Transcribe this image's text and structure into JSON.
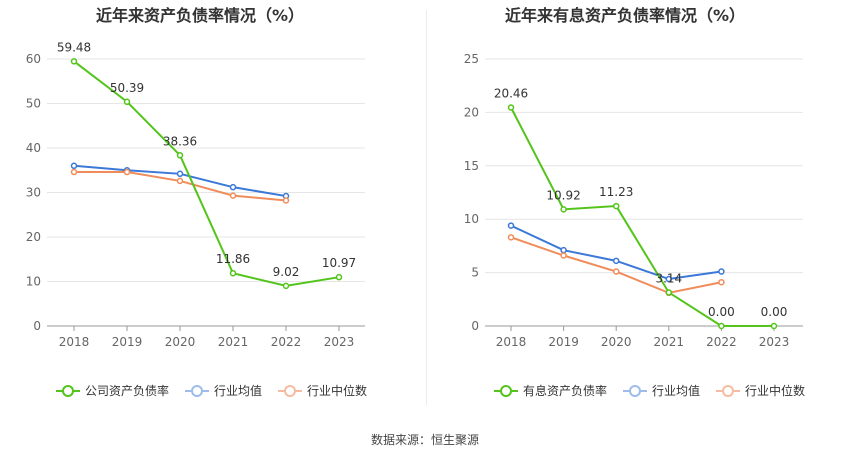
{
  "source_label": "数据来源：恒生聚源",
  "chart_data": [
    {
      "type": "line",
      "title": "近年来资产负债率情况（%）",
      "categories": [
        "2018",
        "2019",
        "2020",
        "2021",
        "2022",
        "2023"
      ],
      "ylim": [
        0,
        60
      ],
      "yticks": [
        0,
        10,
        20,
        30,
        40,
        50,
        60
      ],
      "grid": true,
      "legend_position": "bottom",
      "series": [
        {
          "name": "公司资产负债率",
          "color": "#52c41a",
          "values": [
            59.48,
            50.39,
            38.36,
            11.86,
            9.02,
            10.97
          ],
          "labels": [
            "59.48",
            "50.39",
            "38.36",
            "11.86",
            "9.02",
            "10.97"
          ]
        },
        {
          "name": "行业均值",
          "color": "#3b78d8",
          "values": [
            36.0,
            35.0,
            34.2,
            31.2,
            29.2,
            null
          ]
        },
        {
          "name": "行业中位数",
          "color": "#f08c5a",
          "values": [
            34.6,
            34.6,
            32.6,
            29.3,
            28.2,
            null
          ]
        }
      ]
    },
    {
      "type": "line",
      "title": "近年来有息资产负债率情况（%）",
      "categories": [
        "2018",
        "2019",
        "2020",
        "2021",
        "2022",
        "2023"
      ],
      "ylim": [
        0,
        25
      ],
      "yticks": [
        0,
        5,
        10,
        15,
        20,
        25
      ],
      "grid": true,
      "legend_position": "bottom",
      "series": [
        {
          "name": "有息资产负债率",
          "color": "#52c41a",
          "values": [
            20.46,
            10.92,
            11.23,
            3.14,
            0.0,
            0.0
          ],
          "labels": [
            "20.46",
            "10.92",
            "11.23",
            "3.14",
            "0.00",
            "0.00"
          ]
        },
        {
          "name": "行业均值",
          "color": "#3b78d8",
          "values": [
            9.4,
            7.1,
            6.1,
            4.4,
            5.1,
            null
          ]
        },
        {
          "name": "行业中位数",
          "color": "#f08c5a",
          "values": [
            8.3,
            6.6,
            5.1,
            3.1,
            4.1,
            null
          ]
        }
      ]
    }
  ]
}
